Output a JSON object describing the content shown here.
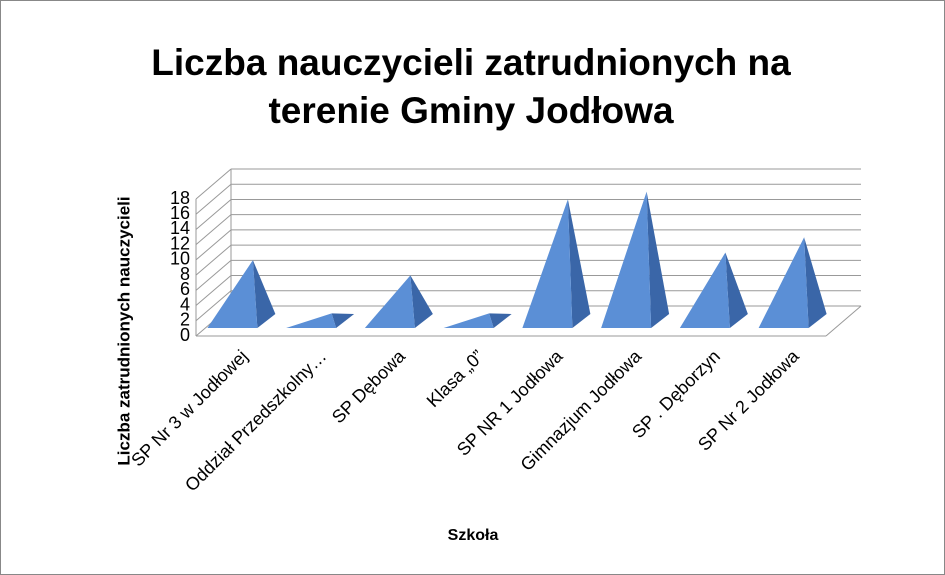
{
  "chart_data": {
    "type": "pyramid3d",
    "title": "Liczba nauczycieli zatrudnionych na terenie Gminy Jodłowa",
    "x_label": "Szkoła",
    "y_label": "Liczba zatrudnionych nauczycieli",
    "categories": [
      "SP Nr 3 w Jodłowej",
      "Oddział Przedszkolny…",
      "SP Dębowa",
      "Klasa „0”",
      "SP NR 1 Jodłowa",
      "Gimnazjum Jodłowa",
      "SP . Dęborzyn",
      "SP Nr 2 Jodłowa"
    ],
    "values": [
      8,
      1,
      6,
      1,
      16,
      17,
      9,
      11
    ],
    "color": "#5b8fd6",
    "ylim": [
      0,
      18
    ],
    "yticks": [
      0,
      2,
      4,
      6,
      8,
      10,
      12,
      14,
      16,
      18
    ],
    "grid": true
  }
}
